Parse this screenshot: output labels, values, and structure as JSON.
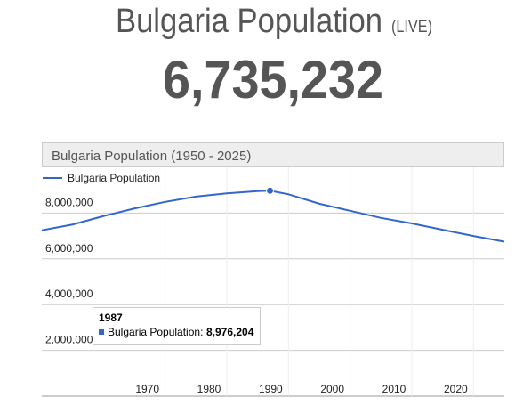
{
  "header": {
    "title": "Bulgaria Population",
    "live": "(LIVE)",
    "counter": "6,735,232"
  },
  "chart_data": {
    "type": "line",
    "title": "Bulgaria Population (1950 - 2025)",
    "x": [
      1950,
      1955,
      1960,
      1965,
      1970,
      1975,
      1980,
      1985,
      1987,
      1990,
      1995,
      2000,
      2005,
      2010,
      2015,
      2020,
      2025
    ],
    "series": [
      {
        "name": "Bulgaria Population",
        "color": "#3366cc",
        "values": [
          7250000,
          7500000,
          7870000,
          8200000,
          8490000,
          8720000,
          8860000,
          8960000,
          8976204,
          8820000,
          8410000,
          8100000,
          7790000,
          7550000,
          7270000,
          7000000,
          6750000
        ]
      }
    ],
    "xlim": [
      1950,
      2025
    ],
    "xticks": [
      1970,
      1980,
      1990,
      2000,
      2010,
      2020
    ],
    "ylim": [
      0,
      10000000
    ],
    "yticks": [
      {
        "value": 2000000,
        "label": "2,000,000"
      },
      {
        "value": 4000000,
        "label": "4,000,000"
      },
      {
        "value": 6000000,
        "label": "6,000,000"
      },
      {
        "value": 8000000,
        "label": "8,000,000"
      }
    ],
    "grid": true,
    "legend": "top-left",
    "tooltip": {
      "title": "1987",
      "series_label": "Bulgaria Population:",
      "value": {
        "value": 8976204,
        "label": "8,976,204"
      }
    }
  }
}
